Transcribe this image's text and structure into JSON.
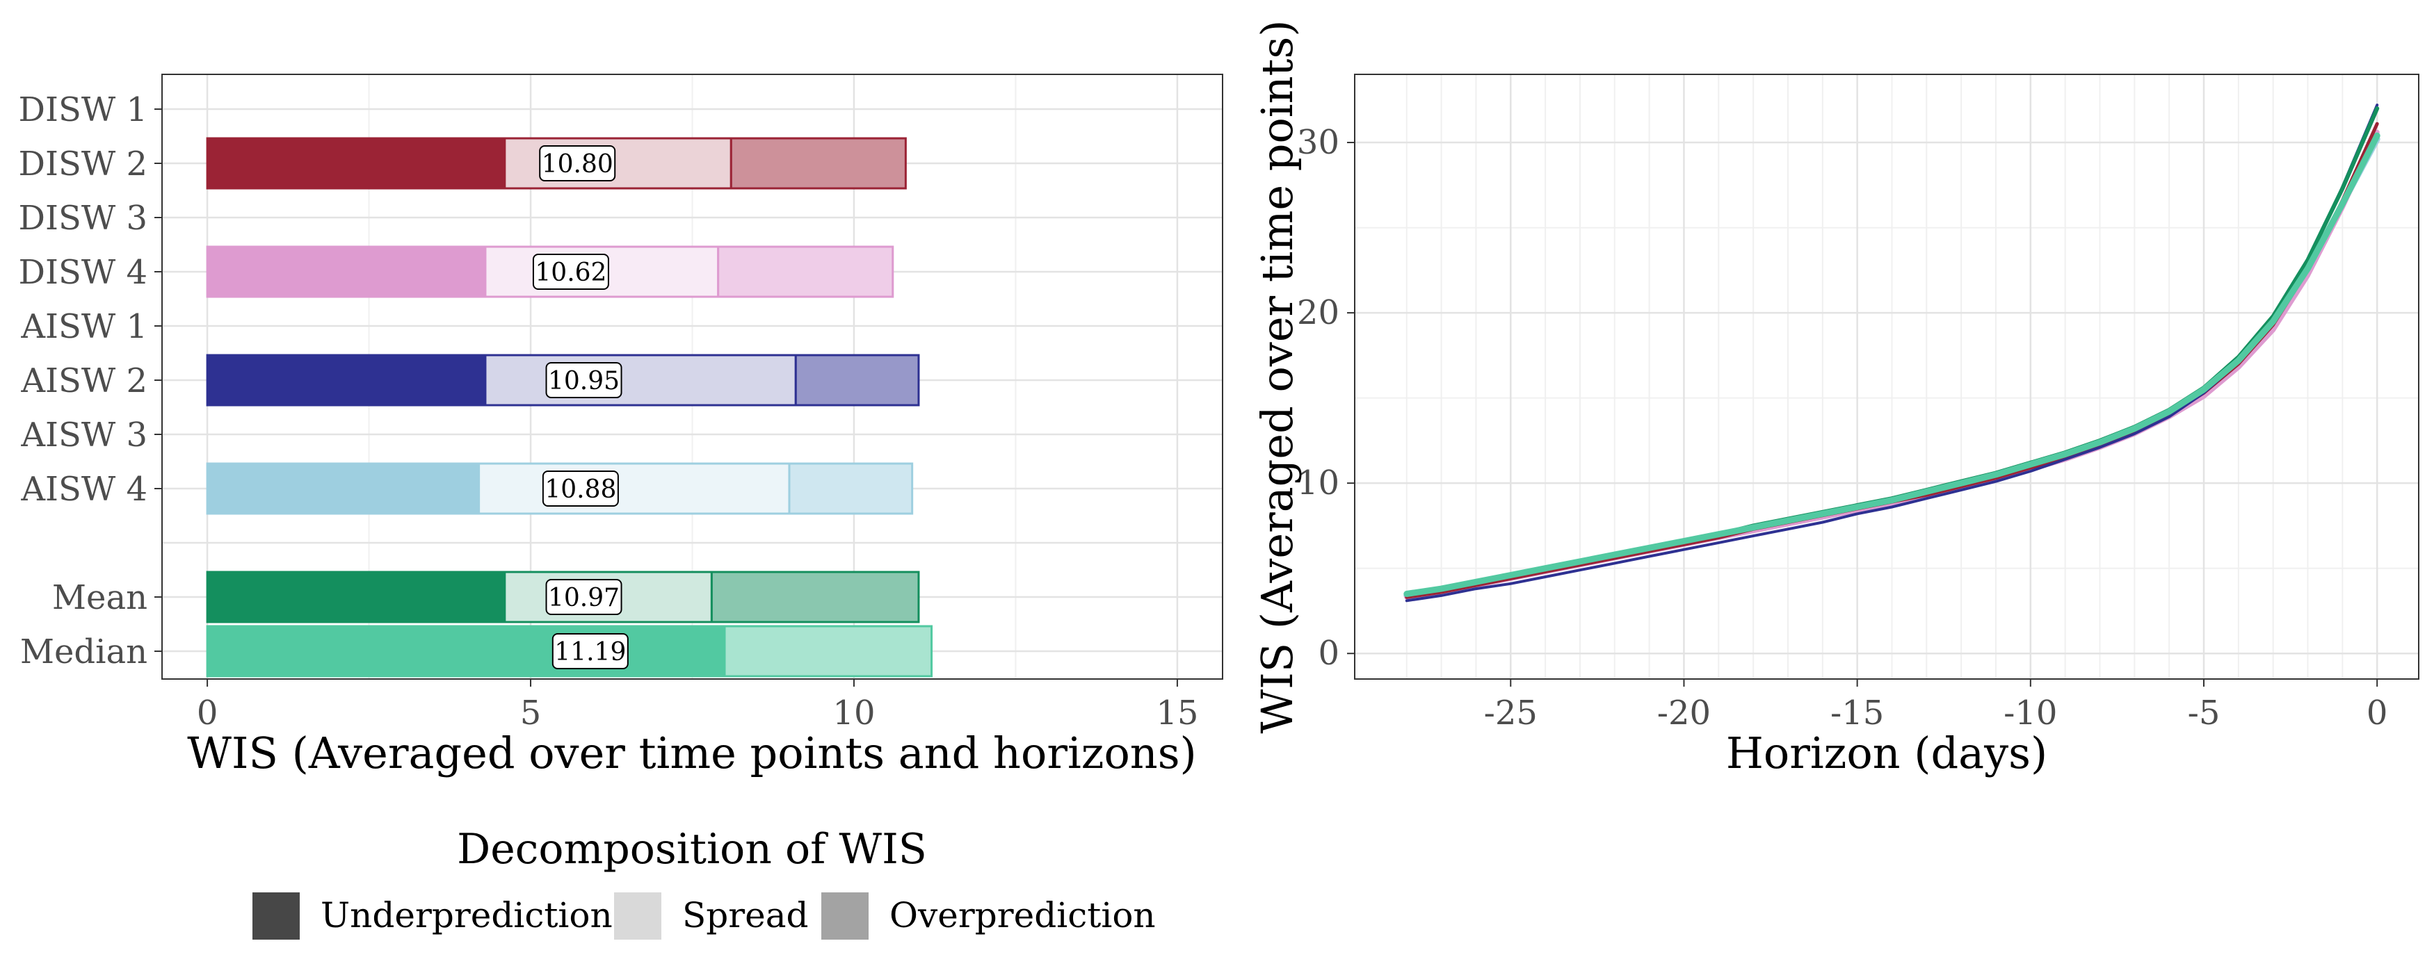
{
  "chart_data": [
    {
      "type": "bar",
      "orientation": "horizontal",
      "stacked": true,
      "categories": [
        "DISW 1",
        "DISW 2",
        "DISW 3",
        "DISW 4",
        "AISW 1",
        "AISW 2",
        "AISW 3",
        "AISW 4",
        "Mean",
        "Median"
      ],
      "xlabel": "WIS (Averaged over time points and horizons)",
      "xlim": [
        -0.7,
        15.7
      ],
      "xticks": [
        0,
        5,
        10,
        15
      ],
      "grid": true,
      "bars": [
        {
          "category": "DISW 2",
          "underprediction": 4.6,
          "spread": 3.5,
          "overprediction": 2.7,
          "total_label": "10.80",
          "color": "#9B2335",
          "shown": true
        },
        {
          "category": "DISW 4",
          "underprediction": 4.3,
          "spread": 3.6,
          "overprediction": 2.7,
          "total_label": "10.62",
          "color": "#DE9BD0",
          "shown": true
        },
        {
          "category": "AISW 2",
          "underprediction": 4.3,
          "spread": 4.8,
          "overprediction": 1.9,
          "total_label": "10.95",
          "color": "#2E3192",
          "shown": true
        },
        {
          "category": "AISW 4",
          "underprediction": 4.2,
          "spread": 4.8,
          "overprediction": 1.9,
          "total_label": "10.88",
          "color": "#9ECFE0",
          "shown": true
        },
        {
          "category": "Mean",
          "underprediction": 4.6,
          "spread": 3.2,
          "overprediction": 3.2,
          "total_label": "10.97",
          "color": "#148F5E",
          "shown": true
        },
        {
          "category": "Median",
          "underprediction": 8.0,
          "spread": 0.0,
          "overprediction": 3.2,
          "total_label": "11.19",
          "color": "#52C9A1",
          "shown": true
        }
      ],
      "legend": {
        "title": "Decomposition of WIS",
        "placement": "bottom",
        "items": [
          {
            "label": "Underprediction",
            "color": "#474747"
          },
          {
            "label": "Spread",
            "color": "#D9D9D9"
          },
          {
            "label": "Overprediction",
            "color": "#A3A3A3"
          }
        ]
      }
    },
    {
      "type": "line",
      "xlabel": "Horizon (days)",
      "ylabel": "WIS (Averaged over time points)",
      "xlim": [
        -29.5,
        1.2
      ],
      "ylim": [
        -1.5,
        34
      ],
      "xticks": [
        -25,
        -20,
        -15,
        -10,
        -5,
        0
      ],
      "yticks": [
        0,
        10,
        20,
        30
      ],
      "grid": true,
      "x": [
        -28,
        -27,
        -26,
        -25,
        -24,
        -23,
        -22,
        -21,
        -20,
        -19,
        -18,
        -17,
        -16,
        -15,
        -14,
        -13,
        -12,
        -11,
        -10,
        -9,
        -8,
        -7,
        -6,
        -5,
        -4,
        -3,
        -2,
        -1,
        0
      ],
      "series": [
        {
          "color": "#9ECFE0",
          "values": [
            3.4,
            3.7,
            4.1,
            4.5,
            4.9,
            5.3,
            5.7,
            6.1,
            6.5,
            6.9,
            7.3,
            7.7,
            8.1,
            8.5,
            8.9,
            9.3,
            9.8,
            10.3,
            10.9,
            11.6,
            12.3,
            13.1,
            14.1,
            15.4,
            17.1,
            19.4,
            22.6,
            26.4,
            30.2
          ]
        },
        {
          "color": "#DE9BD0",
          "values": [
            3.3,
            3.6,
            4.0,
            4.4,
            4.8,
            5.2,
            5.6,
            6.0,
            6.4,
            6.8,
            7.2,
            7.6,
            8.0,
            8.4,
            8.8,
            9.2,
            9.7,
            10.2,
            10.8,
            11.4,
            12.1,
            12.9,
            13.9,
            15.1,
            16.8,
            19.0,
            22.2,
            26.2,
            30.6
          ]
        },
        {
          "color": "#9B2335",
          "values": [
            3.3,
            3.6,
            4.0,
            4.4,
            4.8,
            5.2,
            5.6,
            6.0,
            6.4,
            6.8,
            7.3,
            7.7,
            8.1,
            8.5,
            8.9,
            9.3,
            9.8,
            10.3,
            10.9,
            11.5,
            12.2,
            13.0,
            14.0,
            15.3,
            17.0,
            19.3,
            22.5,
            26.6,
            31.1
          ]
        },
        {
          "color": "#2E3192",
          "values": [
            3.1,
            3.4,
            3.8,
            4.1,
            4.5,
            4.9,
            5.3,
            5.7,
            6.1,
            6.5,
            6.9,
            7.3,
            7.7,
            8.2,
            8.6,
            9.1,
            9.6,
            10.1,
            10.7,
            11.4,
            12.1,
            12.9,
            13.9,
            15.3,
            17.1,
            19.6,
            23.0,
            27.4,
            32.2
          ]
        },
        {
          "color": "#148F5E",
          "values": [
            3.5,
            3.8,
            4.2,
            4.6,
            5.0,
            5.4,
            5.8,
            6.2,
            6.6,
            7.0,
            7.5,
            7.9,
            8.3,
            8.7,
            9.1,
            9.6,
            10.1,
            10.6,
            11.2,
            11.8,
            12.5,
            13.3,
            14.3,
            15.6,
            17.4,
            19.8,
            23.1,
            27.3,
            32.0
          ]
        },
        {
          "color": "#52C9A1",
          "values": [
            3.5,
            3.8,
            4.2,
            4.6,
            5.0,
            5.4,
            5.8,
            6.2,
            6.6,
            7.0,
            7.4,
            7.8,
            8.2,
            8.6,
            9.0,
            9.5,
            10.0,
            10.5,
            11.1,
            11.7,
            12.4,
            13.2,
            14.2,
            15.5,
            17.2,
            19.5,
            22.6,
            26.4,
            30.4
          ]
        }
      ]
    }
  ]
}
